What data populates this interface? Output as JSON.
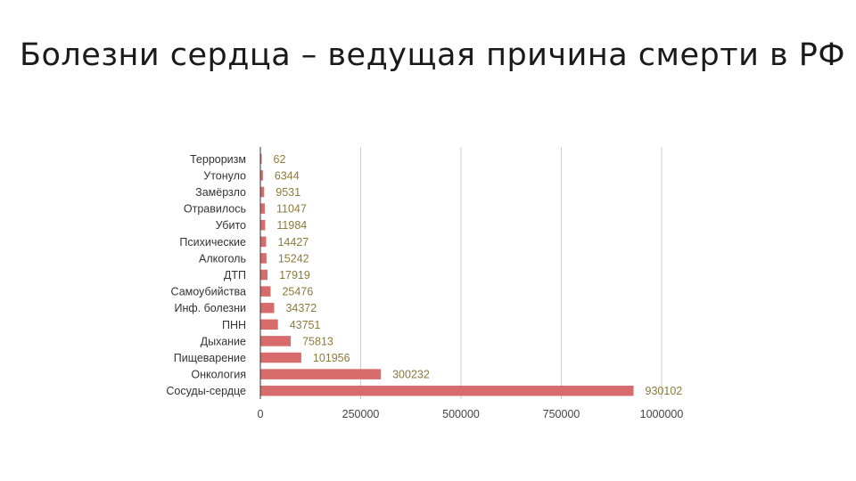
{
  "slide": {
    "title": "Болезни сердца – ведущая причина смерти в РФ"
  },
  "chart_data": {
    "type": "bar",
    "orientation": "horizontal",
    "categories": [
      "Терроризм",
      "Утонуло",
      "Замёрзло",
      "Отравилось",
      "Убито",
      "Психические",
      "Алкоголь",
      "ДТП",
      "Самоубийства",
      "Инф. болезни",
      "ПНН",
      "Дыхание",
      "Пищеварение",
      "Онкология",
      "Сосуды-сердце"
    ],
    "values": [
      62,
      6344,
      9531,
      11047,
      11984,
      14427,
      15242,
      17919,
      25476,
      34372,
      43751,
      75813,
      101956,
      300232,
      930102
    ],
    "value_labels": [
      "62",
      "6344",
      "9531",
      "11047",
      "11984",
      "14427",
      "15242",
      "17919",
      "25476",
      "34372",
      "43751",
      "75813",
      "101956",
      "300232",
      "930102"
    ],
    "x_ticks": [
      0,
      250000,
      500000,
      750000,
      1000000
    ],
    "x_tick_labels": [
      "0",
      "250000",
      "500000",
      "750000",
      "1000000"
    ],
    "xlim": [
      0,
      1000000
    ],
    "bar_color": "#d86b6b",
    "grid": true,
    "legend": "none"
  }
}
